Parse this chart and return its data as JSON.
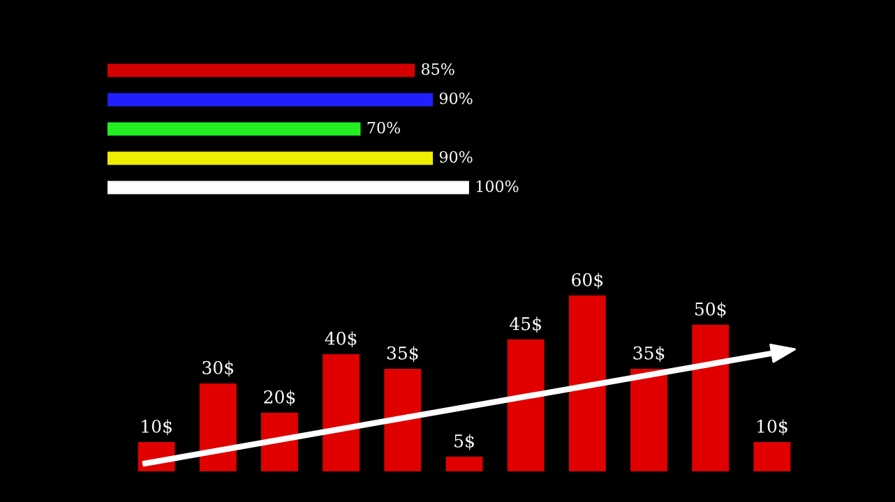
{
  "chart_data": [
    {
      "type": "bar",
      "orientation": "horizontal",
      "categories": [
        null,
        null,
        null,
        null,
        null
      ],
      "values": [
        85,
        90,
        70,
        90,
        100
      ],
      "colors": [
        "#d40000",
        "#2020ff",
        "#22ee22",
        "#eeee00",
        "#ffffff"
      ],
      "value_labels": [
        "85%",
        "90%",
        "70%",
        "90%",
        "100%"
      ]
    },
    {
      "type": "bar",
      "categories": [
        null,
        null,
        null,
        null,
        null,
        null,
        null,
        null,
        null,
        null,
        null
      ],
      "values": [
        10,
        30,
        20,
        40,
        35,
        5,
        45,
        60,
        35,
        50,
        10
      ],
      "color": "#e00000",
      "value_labels": [
        "10$",
        "30$",
        "20$",
        "40$",
        "35$",
        "5$",
        "45$",
        "60$",
        "35$",
        "50$",
        "10$"
      ]
    }
  ]
}
